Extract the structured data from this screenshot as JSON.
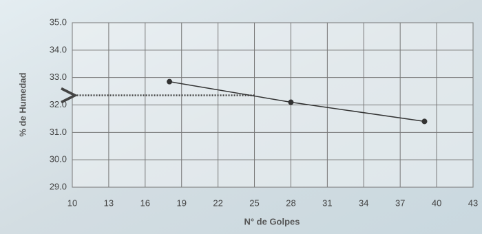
{
  "chart_data": {
    "type": "line",
    "x_label": "N° de Golpes",
    "y_label": "% de Humedad",
    "x": [
      18,
      28,
      39
    ],
    "values": [
      32.85,
      32.1,
      31.4
    ],
    "color": "#333333",
    "xlim": [
      10,
      43
    ],
    "xticks": [
      10,
      13,
      16,
      19,
      22,
      25,
      28,
      31,
      34,
      37,
      40,
      43
    ],
    "ylim": [
      29,
      35
    ],
    "yticks": [
      {
        "value": 29,
        "label": "29.0"
      },
      {
        "value": 30,
        "label": "30.0"
      },
      {
        "value": 31,
        "label": "31.0"
      },
      {
        "value": 32,
        "label": "32.0"
      },
      {
        "value": 33,
        "label": "33.0"
      },
      {
        "value": 34,
        "label": "34.0"
      },
      {
        "value": 35,
        "label": "35.0"
      }
    ],
    "grid": true,
    "reference_arrow": {
      "x": 25,
      "y": 32.35
    }
  }
}
